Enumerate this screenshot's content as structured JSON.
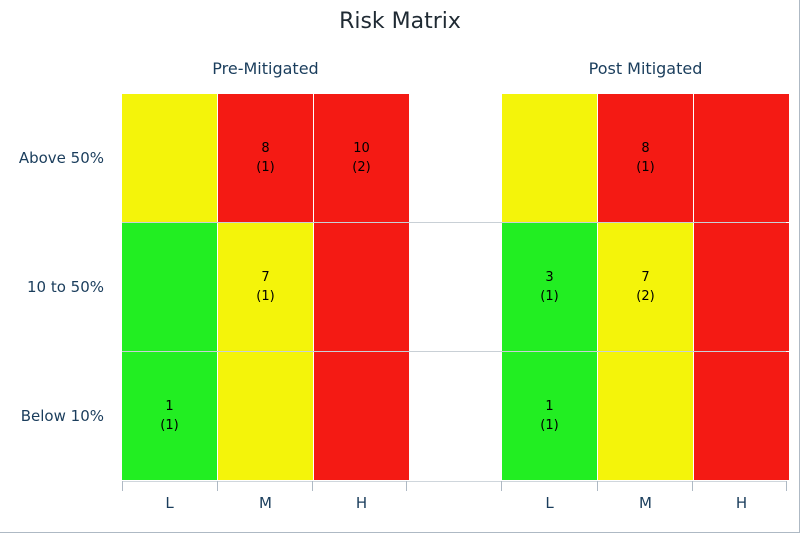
{
  "chart_data": {
    "type": "heatmap",
    "title": "Risk Matrix",
    "rows": [
      "Above 50%",
      "10 to 50%",
      "Below 10%"
    ],
    "columns": [
      "L",
      "M",
      "H"
    ],
    "colors": {
      "green": "#22ee22",
      "yellow": "#f4f40a",
      "red": "#f41a14"
    },
    "panels": [
      {
        "title": "Pre-Mitigated",
        "cells": [
          [
            {
              "color": "yellow",
              "value": "",
              "count": ""
            },
            {
              "color": "red",
              "value": "8",
              "count": "(1)"
            },
            {
              "color": "red",
              "value": "10",
              "count": "(2)"
            }
          ],
          [
            {
              "color": "green",
              "value": "",
              "count": ""
            },
            {
              "color": "yellow",
              "value": "7",
              "count": "(1)"
            },
            {
              "color": "red",
              "value": "",
              "count": ""
            }
          ],
          [
            {
              "color": "green",
              "value": "1",
              "count": "(1)"
            },
            {
              "color": "yellow",
              "value": "",
              "count": ""
            },
            {
              "color": "red",
              "value": "",
              "count": ""
            }
          ]
        ]
      },
      {
        "title": "Post Mitigated",
        "cells": [
          [
            {
              "color": "yellow",
              "value": "",
              "count": ""
            },
            {
              "color": "red",
              "value": "8",
              "count": "(1)"
            },
            {
              "color": "red",
              "value": "",
              "count": ""
            }
          ],
          [
            {
              "color": "green",
              "value": "3",
              "count": "(1)"
            },
            {
              "color": "yellow",
              "value": "7",
              "count": "(2)"
            },
            {
              "color": "red",
              "value": "",
              "count": ""
            }
          ],
          [
            {
              "color": "green",
              "value": "1",
              "count": "(1)"
            },
            {
              "color": "yellow",
              "value": "",
              "count": ""
            },
            {
              "color": "red",
              "value": "",
              "count": ""
            }
          ]
        ]
      }
    ]
  }
}
